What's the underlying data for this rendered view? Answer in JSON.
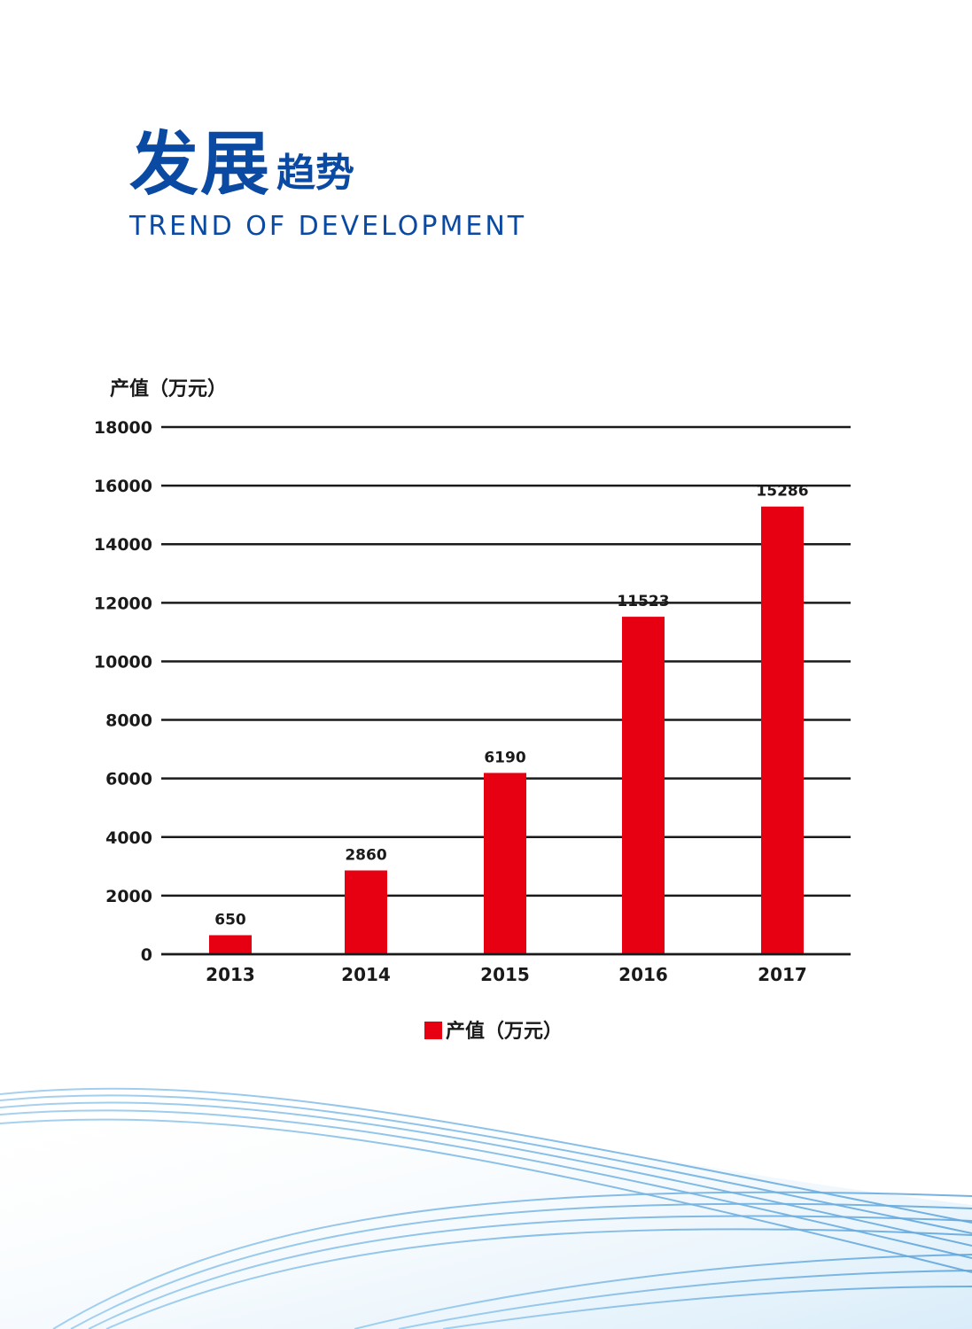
{
  "title": {
    "cn_big": "发展",
    "cn_small": "趋势",
    "en": "TREND OF DEVELOPMENT"
  },
  "colors": {
    "title": "#0b4aa2",
    "bar": "#e60012",
    "grid": "#1a1a1a",
    "text": "#1a1a1a"
  },
  "chart_data": {
    "type": "bar",
    "categories": [
      "2013",
      "2014",
      "2015",
      "2016",
      "2017"
    ],
    "series": [
      {
        "name": "产值（万元）",
        "values": [
          650,
          2860,
          6190,
          11523,
          15286
        ]
      }
    ],
    "data_labels": [
      "650",
      "2860",
      "6190",
      "11523",
      "15286"
    ],
    "ylabel": "产值（万元）",
    "xlabel": "",
    "ylim": [
      0,
      18000
    ],
    "yticks": [
      0,
      2000,
      4000,
      6000,
      8000,
      10000,
      12000,
      14000,
      16000,
      18000
    ],
    "grid": true,
    "legend": "bottom-center"
  }
}
